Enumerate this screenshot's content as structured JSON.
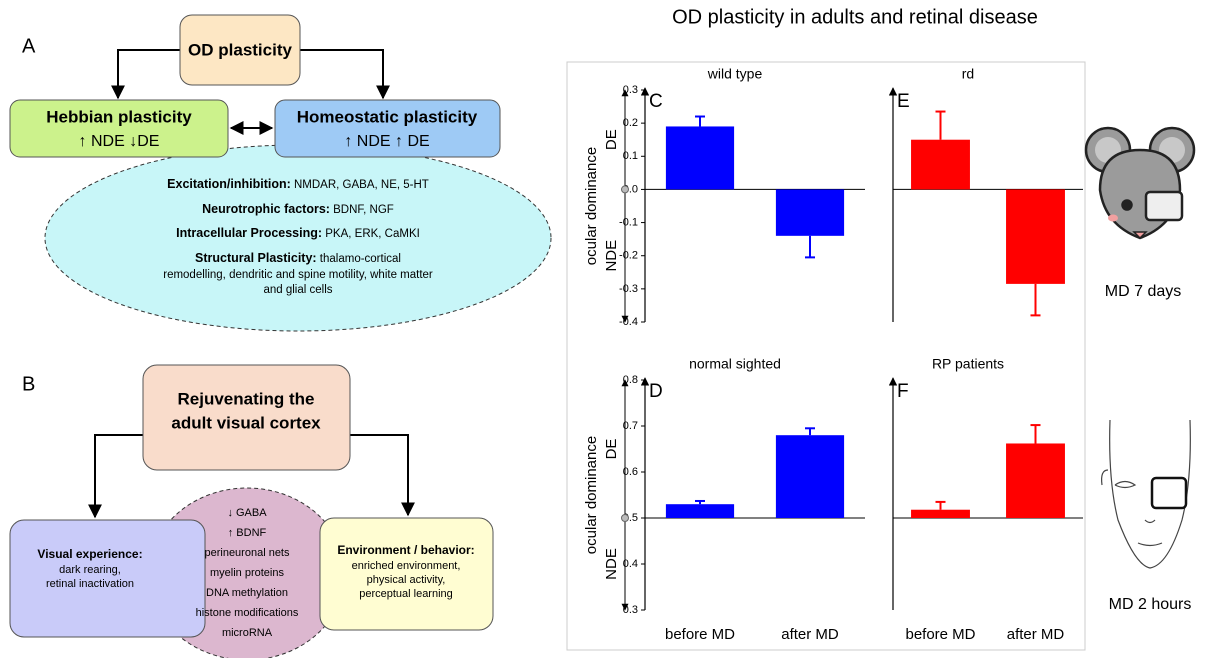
{
  "panel_a": {
    "letter": "A",
    "root": "OD plasticity",
    "hebbian": {
      "title": "Hebbian plasticity",
      "text": "↑ NDE  ↓DE"
    },
    "homeostatic": {
      "title": "Homeostatic plasticity",
      "text": "↑ NDE ↑ DE"
    },
    "mechanisms": [
      {
        "label": "Excitation/inhibition:",
        "text": "NMDAR, GABA, NE, 5-HT"
      },
      {
        "label": "Neurotrophic factors:",
        "text": "BDNF, NGF"
      },
      {
        "label": "Intracellular Processing:",
        "text": "PKA, ERK, CaMKI"
      },
      {
        "label": "Structural Plasticity:",
        "text": "thalamo-cortical"
      }
    ],
    "structural_more": [
      "remodelling, dendritic and spine motility, white matter",
      "and glial cells"
    ]
  },
  "panel_b": {
    "letter": "B",
    "root": [
      "Rejuvenating the",
      "adult visual cortex"
    ],
    "visual_experience": {
      "title": "Visual experience:",
      "lines": [
        "dark rearing,",
        "retinal inactivation"
      ]
    },
    "factors": [
      "↓ GABA",
      "↑ BDNF",
      "perineuronal nets",
      "myelin proteins",
      "DNA methylation",
      "histone modifications",
      "microRNA"
    ],
    "environment": {
      "title": "Environment / behavior:",
      "lines": [
        "enriched environment,",
        "physical activity,",
        "perceptual learning"
      ]
    }
  },
  "figure_title": "OD plasticity in adults and retinal disease",
  "side_labels": [
    "MD 7 days",
    "MD 2 hours"
  ],
  "chart_data": [
    {
      "type": "bar",
      "panel": "C",
      "title": "wild type",
      "categories": [
        null,
        null
      ],
      "values": [
        0.19,
        -0.14
      ],
      "errors": [
        0.03,
        0.065
      ],
      "color": "#0000ff",
      "ylim": [
        -0.4,
        0.3
      ],
      "baseline": 0,
      "yticks": [
        0.3,
        0.2,
        0.1,
        {
          "value": 0,
          "label": "0.0"
        },
        -0.1,
        -0.2,
        -0.3,
        -0.4
      ],
      "ylabel": "ocular dominance",
      "ylabel_high": "DE",
      "ylabel_low": "NDE"
    },
    {
      "type": "bar",
      "panel": "E",
      "title": "rd",
      "categories": [
        null,
        null
      ],
      "values": [
        0.15,
        -0.285
      ],
      "errors": [
        0.085,
        0.095
      ],
      "color": "#ff0000",
      "ylim": [
        -0.4,
        0.3
      ],
      "baseline": 0
    },
    {
      "type": "bar",
      "panel": "D",
      "title": "normal sighted",
      "categories": [
        "before MD",
        "after MD"
      ],
      "values": [
        0.53,
        0.68
      ],
      "errors": [
        0.007,
        0.015
      ],
      "color": "#0000ff",
      "ylim": [
        0.3,
        0.8
      ],
      "baseline": 0.5,
      "yticks": [
        0.8,
        0.7,
        0.6,
        0.5,
        0.4,
        0.3
      ],
      "ylabel": "ocular dominance",
      "ylabel_high": "DE",
      "ylabel_low": "NDE"
    },
    {
      "type": "bar",
      "panel": "F",
      "title": "RP patients",
      "categories": [
        "before MD",
        "after MD"
      ],
      "values": [
        0.518,
        0.662
      ],
      "errors": [
        0.017,
        0.04
      ],
      "color": "#ff0000",
      "ylim": [
        0.3,
        0.8
      ],
      "baseline": 0.5
    }
  ]
}
